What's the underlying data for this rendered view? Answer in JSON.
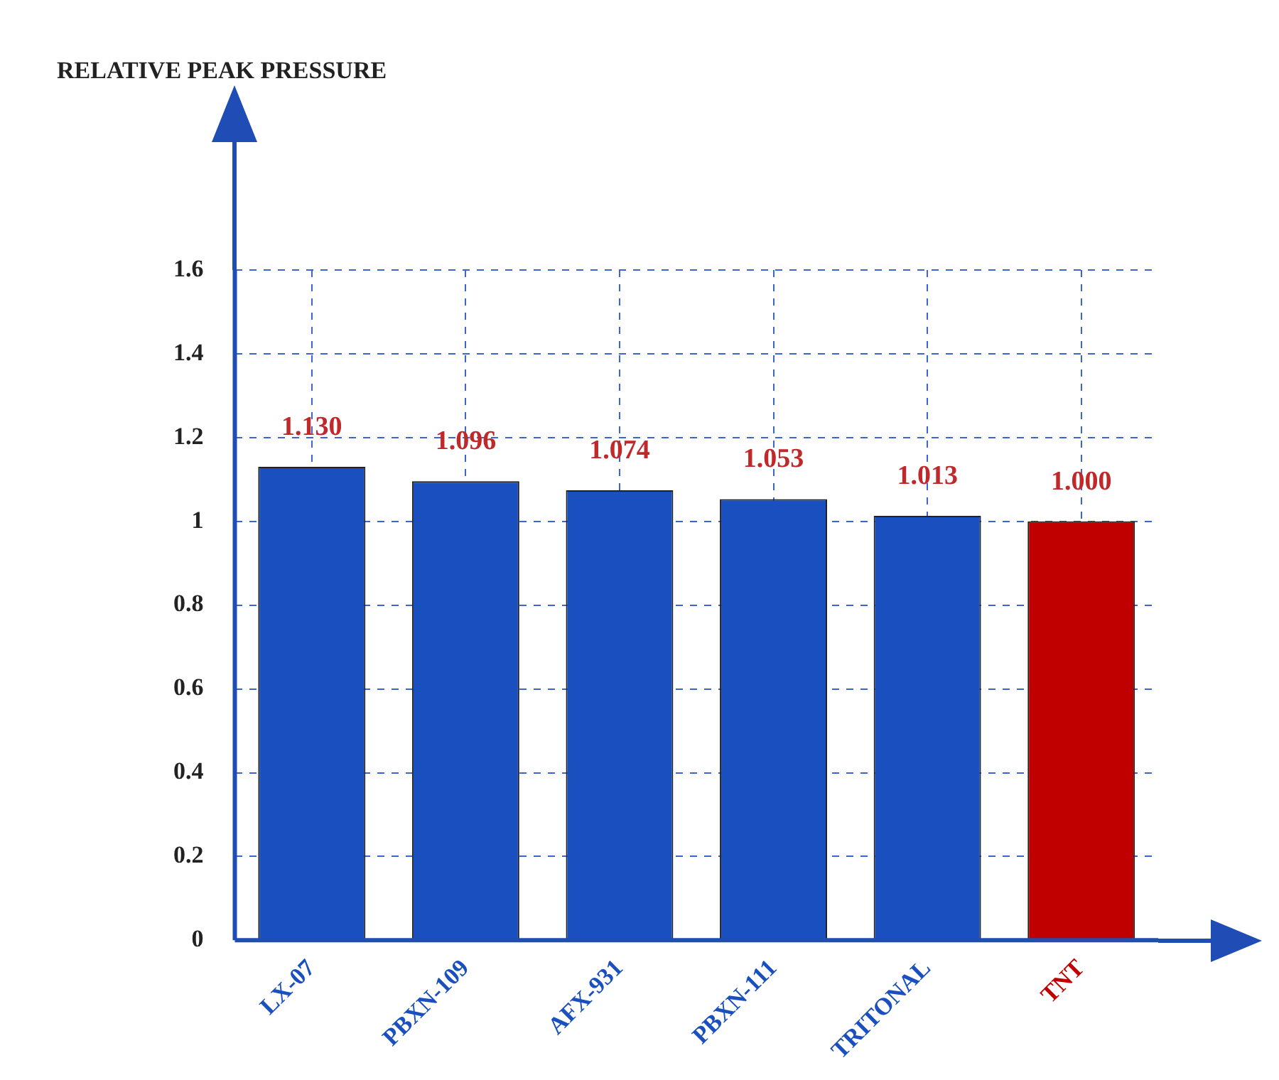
{
  "chart_data": {
    "type": "bar",
    "annotations": [
      "RELATIVE PEAK PRESSURE"
    ],
    "categories": [
      "LX-07",
      "PBXN-109",
      "AFX-931",
      "PBXN-111",
      "TRITONAL",
      "TNT"
    ],
    "values": [
      1.13,
      1.096,
      1.074,
      1.053,
      1.013,
      1.0
    ],
    "colors": [
      "#1a4fc0",
      "#1a4fc0",
      "#1a4fc0",
      "#1a4fc0",
      "#1a4fc0",
      "#c00000"
    ],
    "value_labels": [
      "1.130",
      "1.096",
      "1.074",
      "1.053",
      "1.013",
      "1.000"
    ],
    "ylim": [
      0,
      1.6
    ],
    "yticks": [
      0,
      0.2,
      0.4,
      0.6,
      0.8,
      1,
      1.2,
      1.4,
      1.6
    ],
    "grid": true,
    "legend": false
  }
}
